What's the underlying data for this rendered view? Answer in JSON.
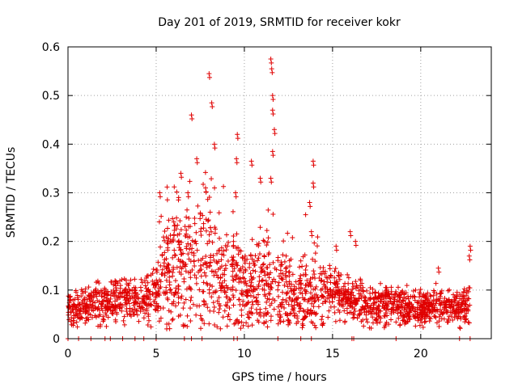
{
  "chart_data": {
    "type": "scatter",
    "title": "Day 201 of 2019, SRMTID for receiver kokr",
    "xlabel": "GPS time / hours",
    "ylabel": "SRMTID / TECUs",
    "xlim": [
      0,
      24
    ],
    "ylim": [
      0,
      0.6
    ],
    "xticks": [
      0,
      5,
      10,
      15,
      20
    ],
    "xtick_labels": [
      "0",
      "5",
      "10",
      "15",
      "20"
    ],
    "yticks": [
      0,
      0.1,
      0.2,
      0.3,
      0.4,
      0.5,
      0.6
    ],
    "ytick_labels": [
      "0",
      "0.1",
      "0.2",
      "0.3",
      "0.4",
      "0.5",
      "0.6"
    ],
    "grid": true,
    "marker": "+",
    "series_color": "#e00000",
    "profile": {
      "description": "approximate median SRMTID per hour (TECU) read from the dense point cloud",
      "hours": [
        0,
        1,
        2,
        3,
        4,
        4.9,
        5.2,
        6,
        7,
        8,
        9,
        10,
        11,
        12,
        13,
        14,
        15,
        16,
        17,
        18,
        19,
        20,
        21,
        22,
        22.8
      ],
      "median": [
        0.06,
        0.07,
        0.075,
        0.08,
        0.075,
        0.09,
        0.12,
        0.15,
        0.16,
        0.16,
        0.11,
        0.1,
        0.11,
        0.1,
        0.08,
        0.09,
        0.1,
        0.08,
        0.07,
        0.07,
        0.065,
        0.06,
        0.065,
        0.06,
        0.07
      ]
    },
    "peaks": [
      {
        "x": 5.2,
        "y": 0.3
      },
      {
        "x": 6.0,
        "y": 0.24
      },
      {
        "x": 6.4,
        "y": 0.34
      },
      {
        "x": 6.8,
        "y": 0.3
      },
      {
        "x": 7.0,
        "y": 0.46
      },
      {
        "x": 7.3,
        "y": 0.37
      },
      {
        "x": 7.8,
        "y": 0.31
      },
      {
        "x": 8.0,
        "y": 0.545
      },
      {
        "x": 8.15,
        "y": 0.485
      },
      {
        "x": 8.3,
        "y": 0.4
      },
      {
        "x": 9.6,
        "y": 0.42
      },
      {
        "x": 9.55,
        "y": 0.37
      },
      {
        "x": 9.5,
        "y": 0.3
      },
      {
        "x": 10.4,
        "y": 0.365
      },
      {
        "x": 10.9,
        "y": 0.33
      },
      {
        "x": 11.5,
        "y": 0.575
      },
      {
        "x": 11.55,
        "y": 0.555
      },
      {
        "x": 11.6,
        "y": 0.5
      },
      {
        "x": 11.6,
        "y": 0.47
      },
      {
        "x": 11.7,
        "y": 0.43
      },
      {
        "x": 11.6,
        "y": 0.385
      },
      {
        "x": 11.5,
        "y": 0.33
      },
      {
        "x": 13.9,
        "y": 0.365
      },
      {
        "x": 13.9,
        "y": 0.32
      },
      {
        "x": 13.7,
        "y": 0.28
      },
      {
        "x": 13.8,
        "y": 0.22
      },
      {
        "x": 15.2,
        "y": 0.19
      },
      {
        "x": 16.0,
        "y": 0.22
      },
      {
        "x": 16.3,
        "y": 0.2
      },
      {
        "x": 21.0,
        "y": 0.145
      },
      {
        "x": 22.8,
        "y": 0.19
      },
      {
        "x": 22.75,
        "y": 0.17
      }
    ],
    "zero_points_x": [
      0,
      0.6,
      1.3,
      2.1,
      2.4,
      3.1,
      3.8,
      4.3,
      5.0,
      6.6,
      7.0,
      7.6,
      9.4,
      9.6,
      11.9,
      13.2,
      13.8,
      16.1,
      16.2,
      18.6,
      22.2,
      22.8
    ],
    "point_count": 2100
  }
}
